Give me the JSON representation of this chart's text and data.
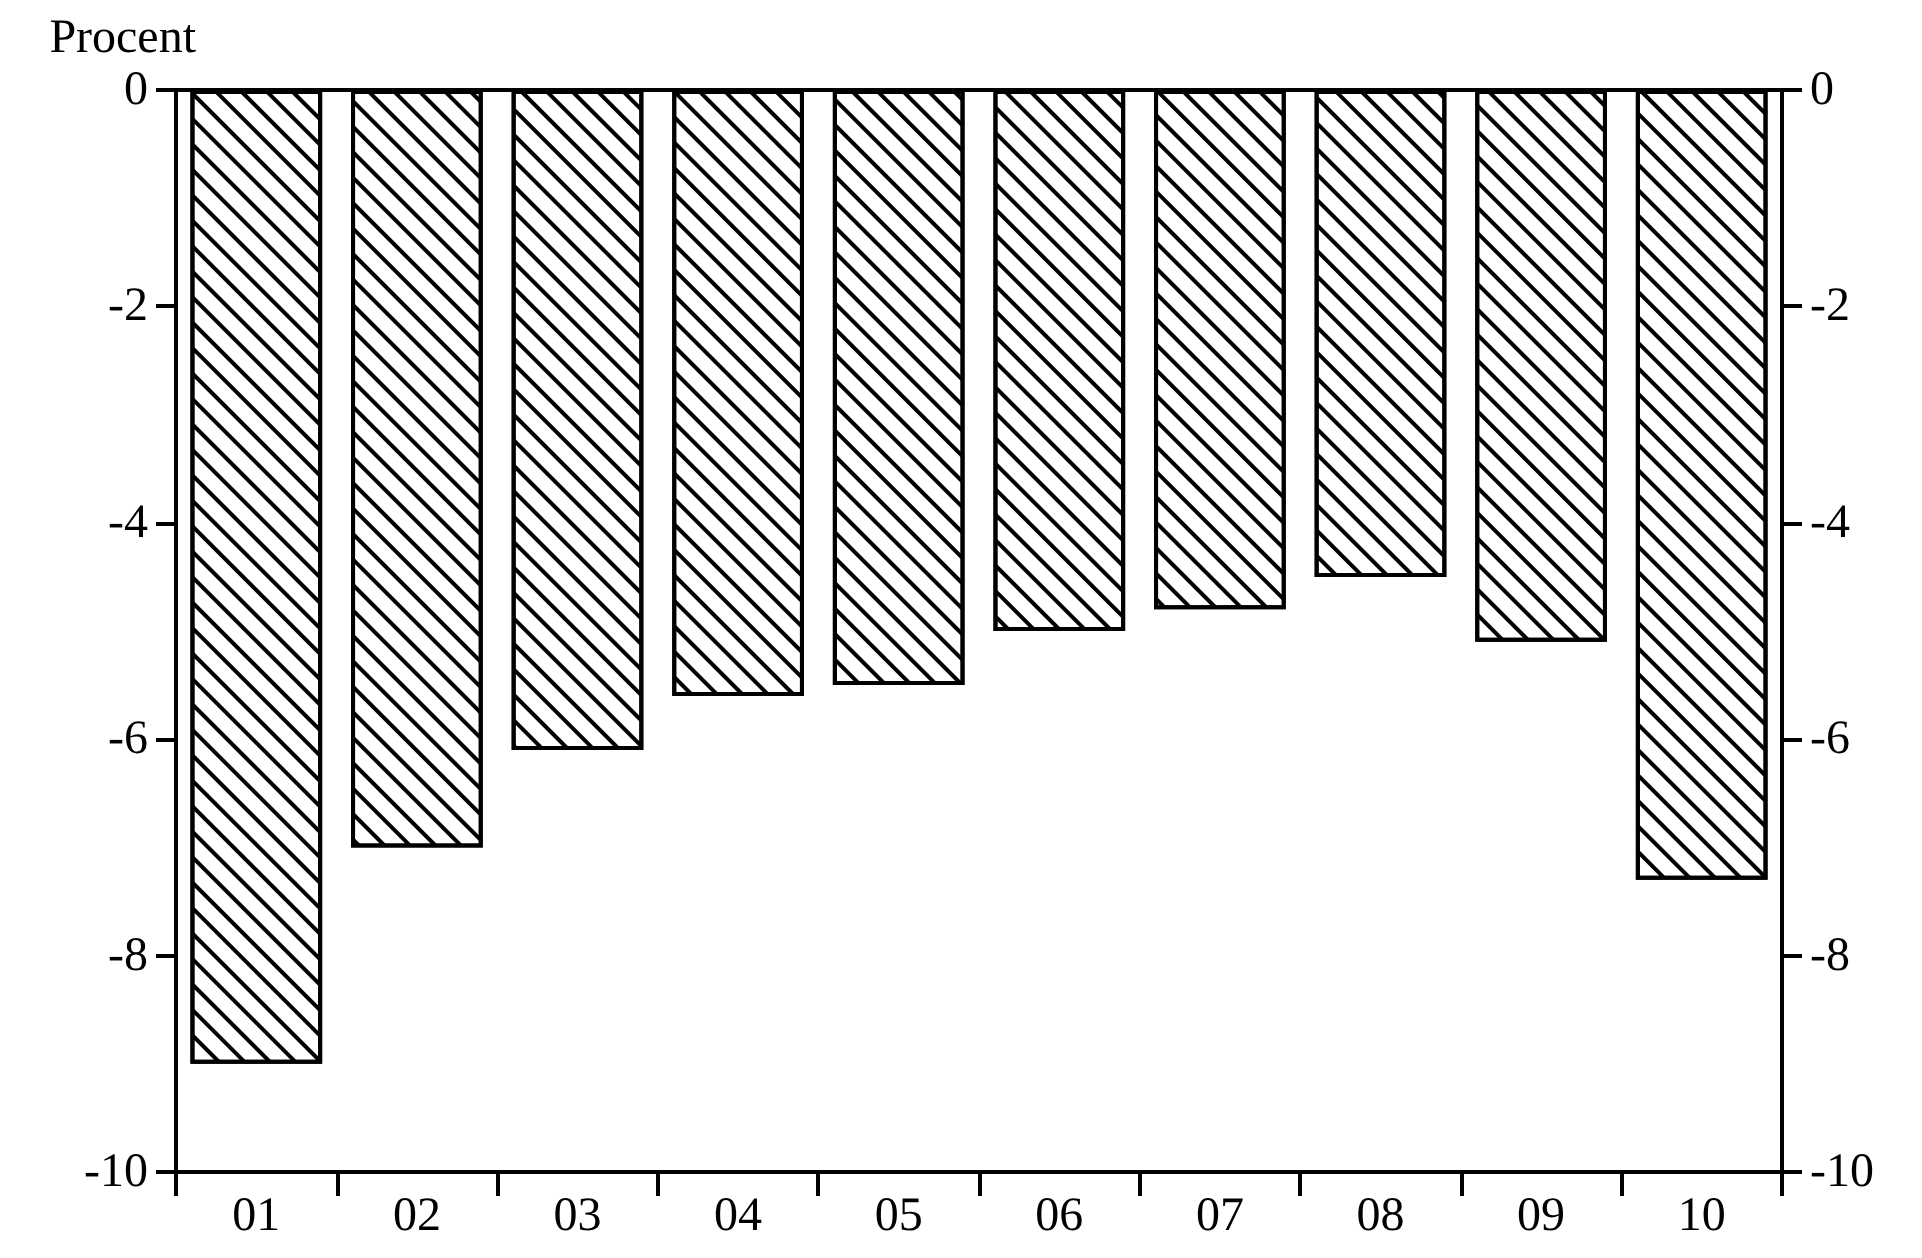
{
  "chart_data": {
    "type": "bar",
    "ylabel": "Procent",
    "categories": [
      "01",
      "02",
      "03",
      "04",
      "05",
      "06",
      "07",
      "08",
      "09",
      "10"
    ],
    "series": [
      {
        "color": "#ffffff",
        "values": [
          -9.0,
          -7.0,
          -6.1,
          -5.6,
          -5.5,
          -5.0,
          -4.8,
          -4.5,
          -5.1,
          -7.3
        ]
      }
    ],
    "ylim": [
      -10,
      0
    ],
    "yticks": [
      -10,
      -8,
      -6,
      -4,
      -2,
      0
    ],
    "y2lim": [
      -10,
      0
    ],
    "y2ticks": [
      -10,
      -8,
      -6,
      -4,
      -2,
      0
    ],
    "grid": false
  }
}
